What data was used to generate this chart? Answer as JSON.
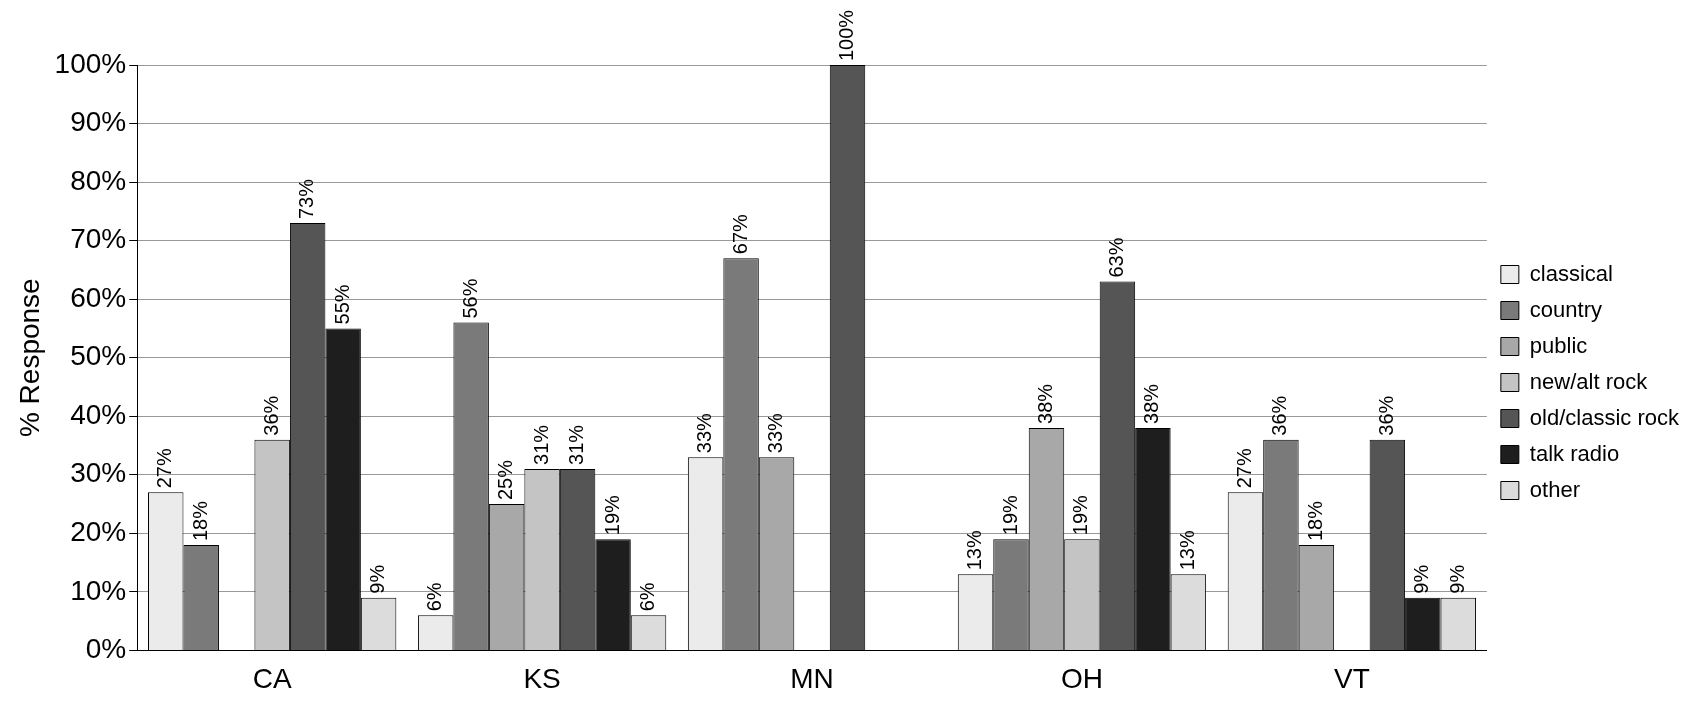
{
  "chart_data": {
    "type": "bar",
    "ylabel": "% Response",
    "categories": [
      "CA",
      "KS",
      "MN",
      "OH",
      "VT"
    ],
    "series": [
      {
        "name": "classical",
        "color": "#ebebeb",
        "values": [
          27,
          6,
          33,
          13,
          27
        ],
        "value_labels": [
          "27%",
          "6%",
          "33%",
          "13%",
          "27%"
        ]
      },
      {
        "name": "country",
        "color": "#7a7a7a",
        "values": [
          18,
          56,
          67,
          19,
          36
        ],
        "value_labels": [
          "18%",
          "56%",
          "67%",
          "19%",
          "36%"
        ]
      },
      {
        "name": "public",
        "color": "#a8a8a8",
        "values": [
          null,
          25,
          33,
          38,
          18
        ],
        "value_labels": [
          null,
          "25%",
          "33%",
          "38%",
          "18%"
        ]
      },
      {
        "name": "new/alt rock",
        "color": "#c4c4c4",
        "values": [
          36,
          31,
          null,
          19,
          null
        ],
        "value_labels": [
          "36%",
          "31%",
          null,
          "19%",
          null
        ]
      },
      {
        "name": "old/classic rock",
        "color": "#555555",
        "values": [
          73,
          31,
          100,
          63,
          36
        ],
        "value_labels": [
          "73%",
          "31%",
          "100%",
          "63%",
          "36%"
        ]
      },
      {
        "name": "talk radio",
        "color": "#1e1e1e",
        "values": [
          55,
          19,
          null,
          38,
          9
        ],
        "value_labels": [
          "55%",
          "19%",
          null,
          "38%",
          "9%"
        ]
      },
      {
        "name": "other",
        "color": "#dcdcdc",
        "values": [
          9,
          6,
          null,
          13,
          9
        ],
        "value_labels": [
          "9%",
          "6%",
          null,
          "13%",
          "9%"
        ]
      }
    ],
    "ylim": [
      0,
      100
    ],
    "yticks": [
      {
        "value": 0,
        "label": "0%"
      },
      {
        "value": 10,
        "label": "10%"
      },
      {
        "value": 20,
        "label": "20%"
      },
      {
        "value": 30,
        "label": "30%"
      },
      {
        "value": 40,
        "label": "40%"
      },
      {
        "value": 50,
        "label": "50%"
      },
      {
        "value": 60,
        "label": "60%"
      },
      {
        "value": 70,
        "label": "70%"
      },
      {
        "value": 80,
        "label": "80%"
      },
      {
        "value": 90,
        "label": "90%"
      },
      {
        "value": 100,
        "label": "100%"
      }
    ],
    "grid": "y",
    "legend": "right"
  }
}
